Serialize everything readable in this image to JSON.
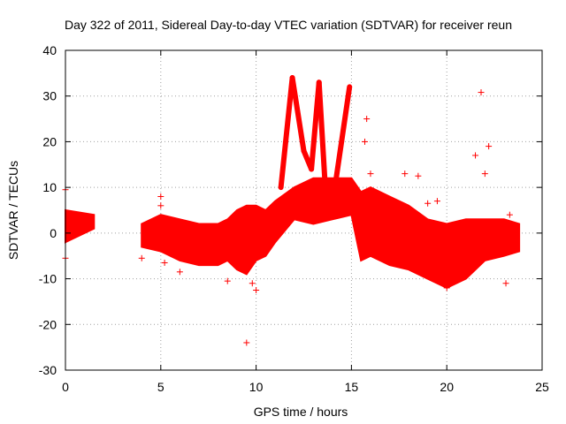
{
  "chart_data": {
    "type": "scatter",
    "title": "Day 322 of 2011, Sidereal Day-to-day VTEC variation (SDTVAR) for receiver reun",
    "xlabel": "GPS time / hours",
    "ylabel": "SDTVAR / TECUs",
    "xlim": [
      0,
      25
    ],
    "ylim": [
      -30,
      40
    ],
    "xticks": [
      "0",
      "5",
      "10",
      "15",
      "20",
      "25"
    ],
    "yticks": [
      "-30",
      "-20",
      "-10",
      "0",
      "10",
      "20",
      "30",
      "40"
    ],
    "grid": true,
    "marker": "+",
    "color": "#ff0000",
    "band": [
      {
        "x": 0.0,
        "low": -2,
        "high": 5
      },
      {
        "x": 1.5,
        "low": 1,
        "high": 4
      },
      {
        "x": 4.0,
        "low": -3,
        "high": 2
      },
      {
        "x": 5.0,
        "low": -4,
        "high": 4
      },
      {
        "x": 6.0,
        "low": -6,
        "high": 3
      },
      {
        "x": 7.0,
        "low": -7,
        "high": 2
      },
      {
        "x": 8.0,
        "low": -7,
        "high": 2
      },
      {
        "x": 8.5,
        "low": -6,
        "high": 3
      },
      {
        "x": 9.0,
        "low": -8,
        "high": 5
      },
      {
        "x": 9.5,
        "low": -9,
        "high": 6
      },
      {
        "x": 10.0,
        "low": -6,
        "high": 6
      },
      {
        "x": 10.5,
        "low": -5,
        "high": 5
      },
      {
        "x": 11.0,
        "low": -2,
        "high": 7
      },
      {
        "x": 12.0,
        "low": 3,
        "high": 10
      },
      {
        "x": 13.0,
        "low": 2,
        "high": 12
      },
      {
        "x": 14.0,
        "low": 3,
        "high": 12
      },
      {
        "x": 15.0,
        "low": 4,
        "high": 12
      },
      {
        "x": 15.5,
        "low": -6,
        "high": 9
      },
      {
        "x": 16.0,
        "low": -5,
        "high": 10
      },
      {
        "x": 17.0,
        "low": -7,
        "high": 8
      },
      {
        "x": 18.0,
        "low": -8,
        "high": 6
      },
      {
        "x": 19.0,
        "low": -10,
        "high": 3
      },
      {
        "x": 20.0,
        "low": -12,
        "high": 2
      },
      {
        "x": 21.0,
        "low": -10,
        "high": 3
      },
      {
        "x": 22.0,
        "low": -6,
        "high": 3
      },
      {
        "x": 23.0,
        "low": -5,
        "high": 3
      },
      {
        "x": 23.8,
        "low": -4,
        "high": 2
      }
    ],
    "spikes": [
      {
        "x0": 11.3,
        "y0": 10,
        "x1": 11.9,
        "y1": 34
      },
      {
        "x0": 11.9,
        "y0": 34,
        "x1": 12.5,
        "y1": 18
      },
      {
        "x0": 12.5,
        "y0": 18,
        "x1": 12.9,
        "y1": 14
      },
      {
        "x0": 12.9,
        "y0": 14,
        "x1": 13.3,
        "y1": 33
      },
      {
        "x0": 13.3,
        "y0": 33,
        "x1": 13.6,
        "y1": 12
      },
      {
        "x0": 14.2,
        "y0": 12,
        "x1": 14.9,
        "y1": 32
      }
    ],
    "outliers": [
      {
        "x": 9.5,
        "y": -24
      },
      {
        "x": 21.8,
        "y": 30.8
      },
      {
        "x": 22.2,
        "y": 19
      },
      {
        "x": 15.8,
        "y": 25
      },
      {
        "x": 15.7,
        "y": 20
      },
      {
        "x": 16.0,
        "y": 13
      },
      {
        "x": 17.8,
        "y": 13
      },
      {
        "x": 18.5,
        "y": 12.5
      },
      {
        "x": 21.5,
        "y": 17
      },
      {
        "x": 22.0,
        "y": 13
      },
      {
        "x": 23.1,
        "y": -11
      },
      {
        "x": 8.5,
        "y": -10.5
      },
      {
        "x": 5.0,
        "y": 8
      },
      {
        "x": 5.0,
        "y": 6
      },
      {
        "x": 4.0,
        "y": -5.5
      },
      {
        "x": 0.0,
        "y": -5.5
      },
      {
        "x": 6.0,
        "y": -8.5
      },
      {
        "x": 5.2,
        "y": -6.5
      },
      {
        "x": 10.0,
        "y": -12.5
      },
      {
        "x": 9.8,
        "y": -11
      },
      {
        "x": 20.0,
        "y": -12
      },
      {
        "x": 19.5,
        "y": 7
      },
      {
        "x": 19.0,
        "y": 6.5
      },
      {
        "x": 0.0,
        "y": 9.5
      },
      {
        "x": 23.3,
        "y": 4
      }
    ]
  }
}
